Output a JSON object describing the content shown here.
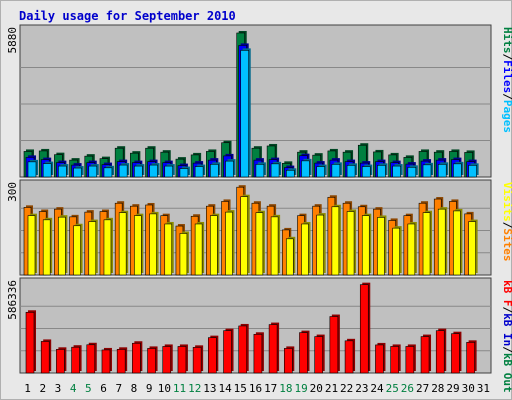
{
  "colors": {
    "background": "#e8e8e8",
    "panel": "#c0c0c0",
    "grid": "#888888",
    "title": "#0000cc",
    "hits": "#008040",
    "files": "#0000ff",
    "pages": "#00c0ff",
    "visits": "#ffff00",
    "sites": "#ff8000",
    "kbf": "#ff0000",
    "kbin": "#0000cc",
    "kbout": "#008040",
    "weekday_label": "#000000",
    "weekend_label": "#008040"
  },
  "chart_data": {
    "type": "bar",
    "title": "Daily usage for September 2010",
    "categories": [
      "1",
      "2",
      "3",
      "4",
      "5",
      "6",
      "7",
      "8",
      "9",
      "10",
      "11",
      "12",
      "13",
      "14",
      "15",
      "16",
      "17",
      "18",
      "19",
      "20",
      "21",
      "22",
      "23",
      "24",
      "25",
      "26",
      "27",
      "28",
      "29",
      "30",
      "31"
    ],
    "weekend_days": [
      "4",
      "5",
      "11",
      "12",
      "18",
      "19",
      "25",
      "26"
    ],
    "panels": [
      {
        "name": "requests",
        "max_label": "5880",
        "ylim": [
          0,
          5880
        ],
        "legend": [
          {
            "text": "Hits",
            "color_key": "hits"
          },
          {
            "text": "/",
            "color_key": "weekday_label"
          },
          {
            "text": "Files",
            "color_key": "files"
          },
          {
            "text": "/",
            "color_key": "weekday_label"
          },
          {
            "text": "Pages",
            "color_key": "pages"
          }
        ],
        "series": [
          {
            "name": "Hits",
            "color_key": "hits",
            "values": [
              1030,
              1050,
              900,
              680,
              840,
              740,
              1160,
              960,
              1160,
              1000,
              720,
              890,
              1030,
              1380,
              5800,
              1160,
              1250,
              550,
              1000,
              880,
              1050,
              1000,
              1280,
              1010,
              890,
              790,
              1030,
              1000,
              1030,
              990,
              0
            ]
          },
          {
            "name": "Files",
            "color_key": "files",
            "values": [
              790,
              700,
              580,
              480,
              580,
              500,
              620,
              580,
              620,
              580,
              460,
              560,
              680,
              850,
              5300,
              680,
              700,
              380,
              860,
              560,
              680,
              620,
              560,
              620,
              580,
              520,
              640,
              680,
              700,
              620,
              0
            ]
          },
          {
            "name": "Pages",
            "color_key": "pages",
            "values": [
              610,
              540,
              440,
              360,
              440,
              370,
              480,
              440,
              480,
              440,
              340,
              420,
              510,
              640,
              5100,
              510,
              530,
              270,
              650,
              420,
              510,
              470,
              420,
              470,
              440,
              390,
              490,
              510,
              530,
              470,
              0
            ]
          }
        ]
      },
      {
        "name": "visitors",
        "max_label": "300",
        "ylim": [
          0,
          300
        ],
        "legend": [
          {
            "text": "Visits",
            "color_key": "visits"
          },
          {
            "text": "/",
            "color_key": "weekday_label"
          },
          {
            "text": "Sites",
            "color_key": "sites"
          }
        ],
        "series": [
          {
            "name": "Sites",
            "color_key": "sites",
            "values": [
              228,
              214,
              222,
              196,
              212,
              214,
              242,
              232,
              236,
              200,
              165,
              198,
              232,
              248,
              296,
              242,
              232,
              152,
              200,
              232,
              262,
              242,
              230,
              222,
              184,
              200,
              242,
              256,
              248,
              206,
              0
            ]
          },
          {
            "name": "Visits",
            "color_key": "visits",
            "values": [
              200,
              186,
              195,
              166,
              180,
              186,
              210,
              200,
              206,
              172,
              140,
              172,
              200,
              212,
              264,
              210,
              196,
              122,
              172,
              202,
              230,
              214,
              200,
              194,
              158,
              172,
              210,
              222,
              216,
              180,
              0
            ]
          }
        ]
      },
      {
        "name": "volume",
        "max_label": "586336",
        "ylim": [
          0,
          586336
        ],
        "legend": [
          {
            "text": "kB F",
            "color_key": "kbf"
          },
          {
            "text": "/",
            "color_key": "weekday_label"
          },
          {
            "text": "kB In",
            "color_key": "kbin"
          },
          {
            "text": "/",
            "color_key": "weekday_label"
          },
          {
            "text": "kB Out",
            "color_key": "kbout"
          }
        ],
        "series": [
          {
            "name": "kB F",
            "color_key": "kbf",
            "values": [
              400000,
              208000,
              156000,
              170000,
              186000,
              152000,
              156000,
              196000,
              162000,
              175000,
              175000,
              169000,
              233000,
              279000,
              310000,
              255000,
              319000,
              162000,
              266000,
              240000,
              372000,
              212000,
              582000,
              185000,
              175000,
              175000,
              240000,
              279000,
              259000,
              202000,
              0
            ]
          }
        ]
      }
    ]
  }
}
